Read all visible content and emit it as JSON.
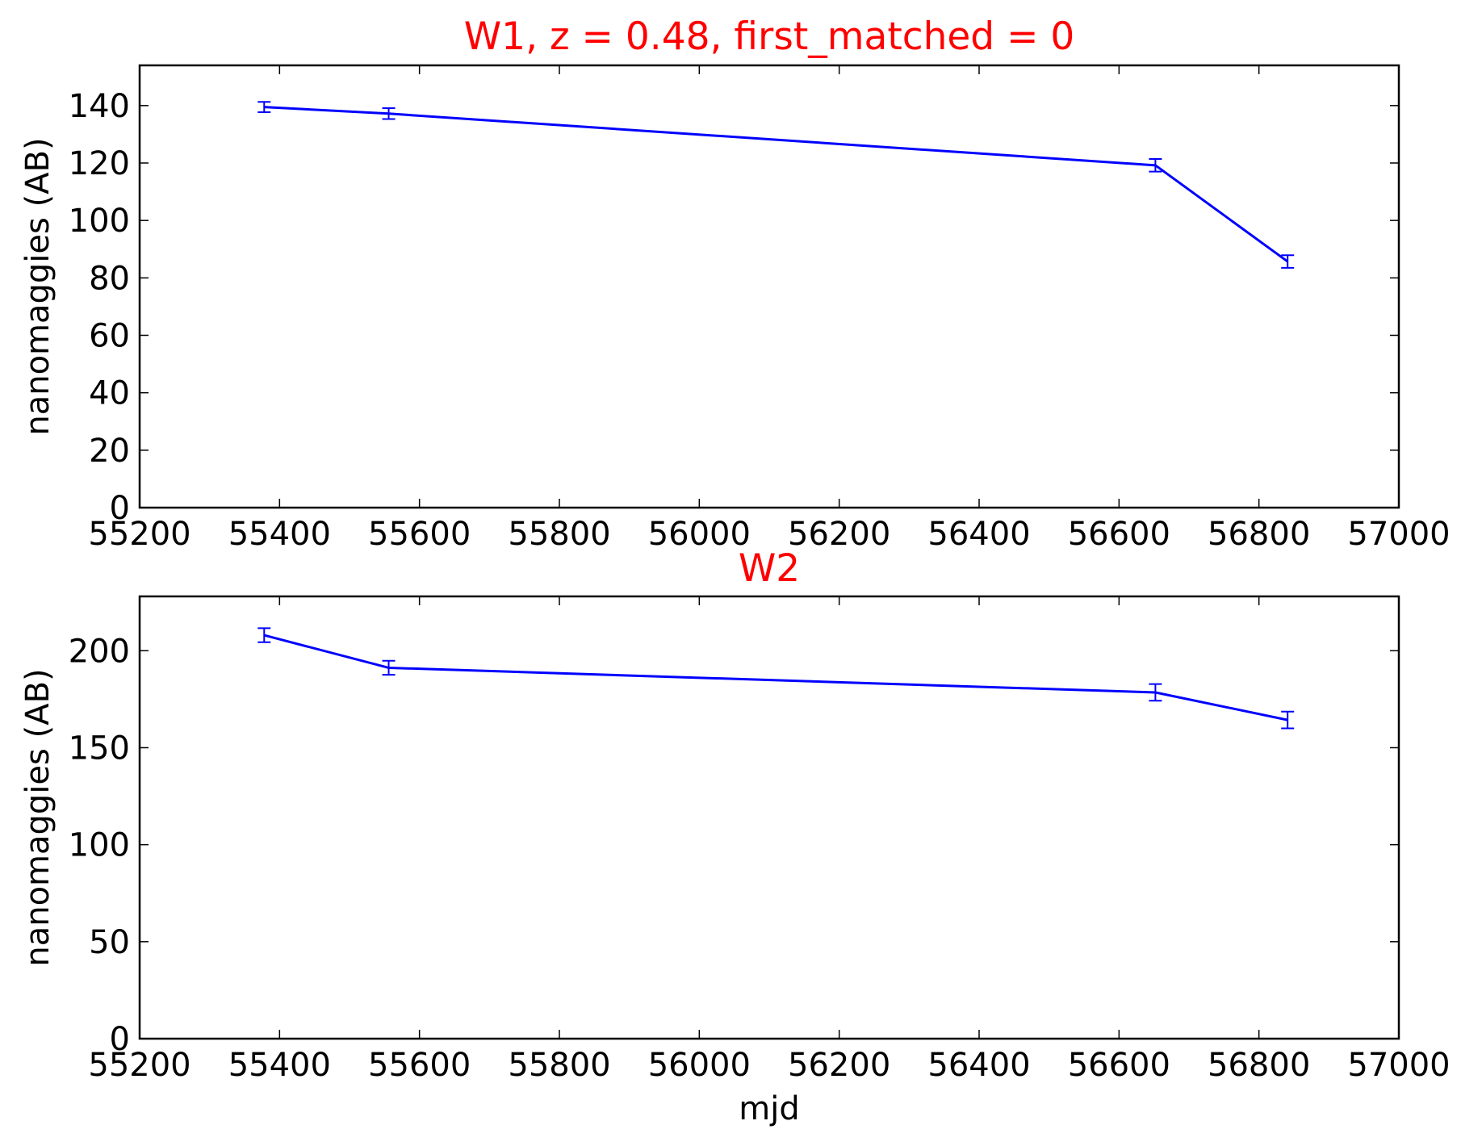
{
  "chart_data": [
    {
      "type": "line",
      "title": "W1, z = 0.48, first_matched = 0",
      "title_color": "#ff0000",
      "xlabel": "",
      "ylabel": "nanomaggies (AB)",
      "xlim": [
        55200,
        57000
      ],
      "ylim": [
        0,
        154
      ],
      "xticks": [
        55200,
        55400,
        55600,
        55800,
        56000,
        56200,
        56400,
        56600,
        56800,
        57000
      ],
      "yticks": [
        0,
        20,
        40,
        60,
        80,
        100,
        120,
        140
      ],
      "grid": false,
      "series": [
        {
          "color": "#0000ff",
          "x": [
            55378,
            55556,
            56652,
            56841
          ],
          "y": [
            139.5,
            137.2,
            119.2,
            85.7
          ],
          "yerr": [
            1.8,
            1.9,
            2.2,
            2.2
          ]
        }
      ]
    },
    {
      "type": "line",
      "title": "W2",
      "title_color": "#ff0000",
      "xlabel": "mjd",
      "ylabel": "nanomaggies (AB)",
      "xlim": [
        55200,
        57000
      ],
      "ylim": [
        0,
        228
      ],
      "xticks": [
        55200,
        55400,
        55600,
        55800,
        56000,
        56200,
        56400,
        56600,
        56800,
        57000
      ],
      "yticks": [
        0,
        50,
        100,
        150,
        200
      ],
      "grid": false,
      "series": [
        {
          "color": "#0000ff",
          "x": [
            55378,
            55556,
            56652,
            56841
          ],
          "y": [
            208.0,
            191.2,
            178.5,
            164.3
          ],
          "yerr": [
            3.6,
            3.6,
            4.3,
            4.3
          ]
        }
      ]
    }
  ]
}
